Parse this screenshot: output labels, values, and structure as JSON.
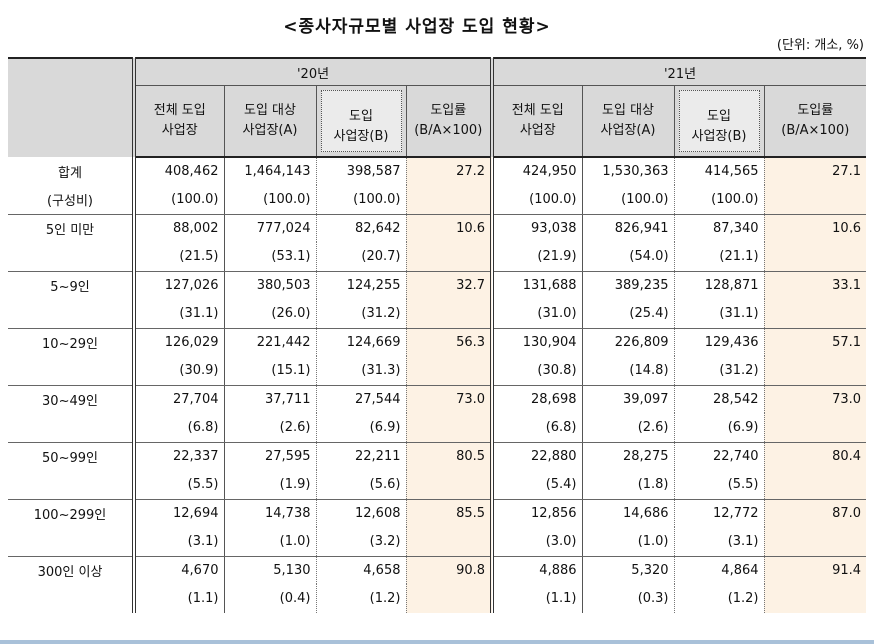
{
  "title": "<종사자규모별 사업장 도입 현황>",
  "unit": "(단위: 개소, %)",
  "years": [
    "'20년",
    "'21년"
  ],
  "columns": [
    {
      "l1": "전체 도입",
      "l2": "사업장"
    },
    {
      "l1": "도입 대상",
      "l2": "사업장(A)"
    },
    {
      "l1": "도입",
      "l2": "사업장(B)"
    },
    {
      "l1": "도입률",
      "l2": "(B/A×100)"
    }
  ],
  "rows": [
    {
      "label": "합계",
      "sub_label": "(구성비)",
      "y20": [
        "408,462",
        "1,464,143",
        "398,587",
        "27.2"
      ],
      "y20_share": [
        "(100.0)",
        "(100.0)",
        "(100.0)"
      ],
      "y21": [
        "424,950",
        "1,530,363",
        "414,565",
        "27.1"
      ],
      "y21_share": [
        "(100.0)",
        "(100.0)",
        "(100.0)"
      ]
    },
    {
      "label": "5인 미만",
      "sub_label": "",
      "y20": [
        "88,002",
        "777,024",
        "82,642",
        "10.6"
      ],
      "y20_share": [
        "(21.5)",
        "(53.1)",
        "(20.7)"
      ],
      "y21": [
        "93,038",
        "826,941",
        "87,340",
        "10.6"
      ],
      "y21_share": [
        "(21.9)",
        "(54.0)",
        "(21.1)"
      ]
    },
    {
      "label": "5~9인",
      "sub_label": "",
      "y20": [
        "127,026",
        "380,503",
        "124,255",
        "32.7"
      ],
      "y20_share": [
        "(31.1)",
        "(26.0)",
        "(31.2)"
      ],
      "y21": [
        "131,688",
        "389,235",
        "128,871",
        "33.1"
      ],
      "y21_share": [
        "(31.0)",
        "(25.4)",
        "(31.1)"
      ]
    },
    {
      "label": "10~29인",
      "sub_label": "",
      "y20": [
        "126,029",
        "221,442",
        "124,669",
        "56.3"
      ],
      "y20_share": [
        "(30.9)",
        "(15.1)",
        "(31.3)"
      ],
      "y21": [
        "130,904",
        "226,809",
        "129,436",
        "57.1"
      ],
      "y21_share": [
        "(30.8)",
        "(14.8)",
        "(31.2)"
      ]
    },
    {
      "label": "30~49인",
      "sub_label": "",
      "y20": [
        "27,704",
        "37,711",
        "27,544",
        "73.0"
      ],
      "y20_share": [
        "(6.8)",
        "(2.6)",
        "(6.9)"
      ],
      "y21": [
        "28,698",
        "39,097",
        "28,542",
        "73.0"
      ],
      "y21_share": [
        "(6.8)",
        "(2.6)",
        "(6.9)"
      ]
    },
    {
      "label": "50~99인",
      "sub_label": "",
      "y20": [
        "22,337",
        "27,595",
        "22,211",
        "80.5"
      ],
      "y20_share": [
        "(5.5)",
        "(1.9)",
        "(5.6)"
      ],
      "y21": [
        "22,880",
        "28,275",
        "22,740",
        "80.4"
      ],
      "y21_share": [
        "(5.4)",
        "(1.8)",
        "(5.5)"
      ]
    },
    {
      "label": "100~299인",
      "sub_label": "",
      "y20": [
        "12,694",
        "14,738",
        "12,608",
        "85.5"
      ],
      "y20_share": [
        "(3.1)",
        "(1.0)",
        "(3.2)"
      ],
      "y21": [
        "12,856",
        "14,686",
        "12,772",
        "87.0"
      ],
      "y21_share": [
        "(3.0)",
        "(1.0)",
        "(3.1)"
      ]
    },
    {
      "label": "300인 이상",
      "sub_label": "",
      "y20": [
        "4,670",
        "5,130",
        "4,658",
        "90.8"
      ],
      "y20_share": [
        "(1.1)",
        "(0.4)",
        "(1.2)"
      ],
      "y21": [
        "4,886",
        "5,320",
        "4,864",
        "91.4"
      ],
      "y21_share": [
        "(1.1)",
        "(0.3)",
        "(1.2)"
      ]
    }
  ]
}
